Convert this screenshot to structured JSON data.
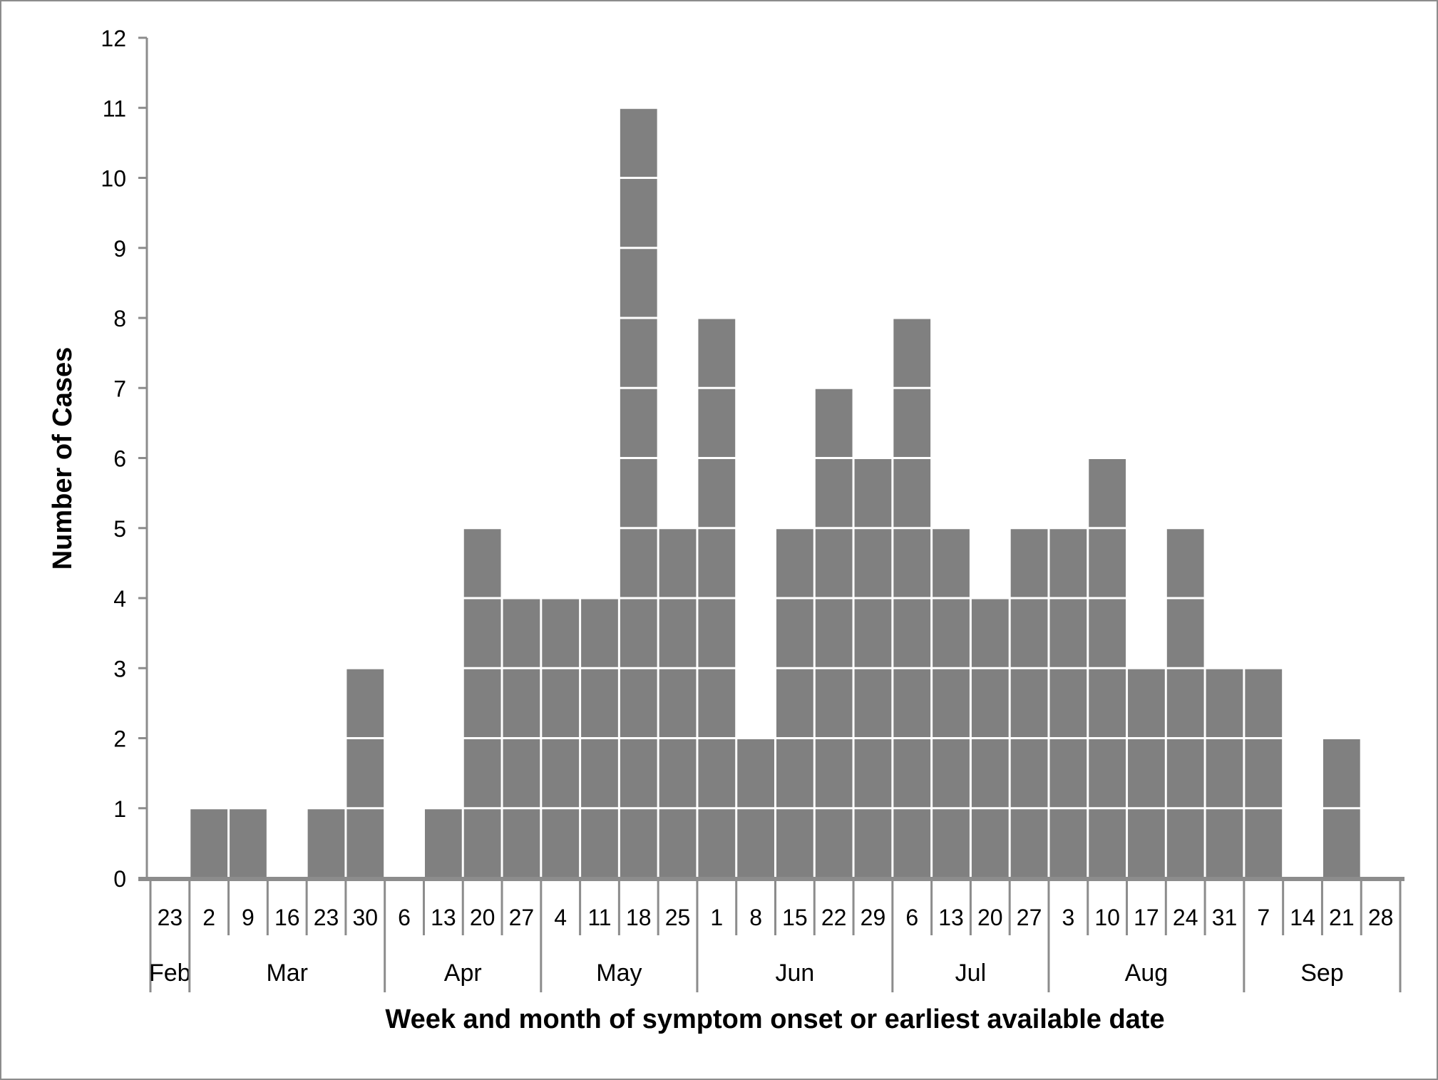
{
  "chart_data": {
    "type": "bar",
    "style": "stacked unit blocks (epidemic curve)",
    "xlabel": "Week and month of symptom onset or earliest available date",
    "ylabel": "Number of Cases",
    "ylim": [
      0,
      12
    ],
    "yticks": [
      0,
      1,
      2,
      3,
      4,
      5,
      6,
      7,
      8,
      9,
      10,
      11,
      12
    ],
    "grid": false,
    "bar_color": "#808080",
    "months": [
      {
        "label": "Feb",
        "weeks": [
          "23"
        ]
      },
      {
        "label": "Mar",
        "weeks": [
          "2",
          "9",
          "16",
          "23",
          "30"
        ]
      },
      {
        "label": "Apr",
        "weeks": [
          "6",
          "13",
          "20",
          "27"
        ]
      },
      {
        "label": "May",
        "weeks": [
          "4",
          "11",
          "18",
          "25"
        ]
      },
      {
        "label": "Jun",
        "weeks": [
          "1",
          "8",
          "15",
          "22",
          "29"
        ]
      },
      {
        "label": "Jul",
        "weeks": [
          "6",
          "13",
          "20",
          "27"
        ]
      },
      {
        "label": "Aug",
        "weeks": [
          "3",
          "10",
          "17",
          "24",
          "31"
        ]
      },
      {
        "label": "Sep",
        "weeks": [
          "7",
          "14",
          "21",
          "28"
        ]
      }
    ],
    "values": [
      0,
      1,
      1,
      0,
      1,
      3,
      0,
      1,
      5,
      4,
      4,
      4,
      11,
      5,
      8,
      2,
      5,
      7,
      6,
      8,
      5,
      4,
      5,
      5,
      6,
      3,
      5,
      3,
      3,
      0,
      2,
      0
    ]
  }
}
